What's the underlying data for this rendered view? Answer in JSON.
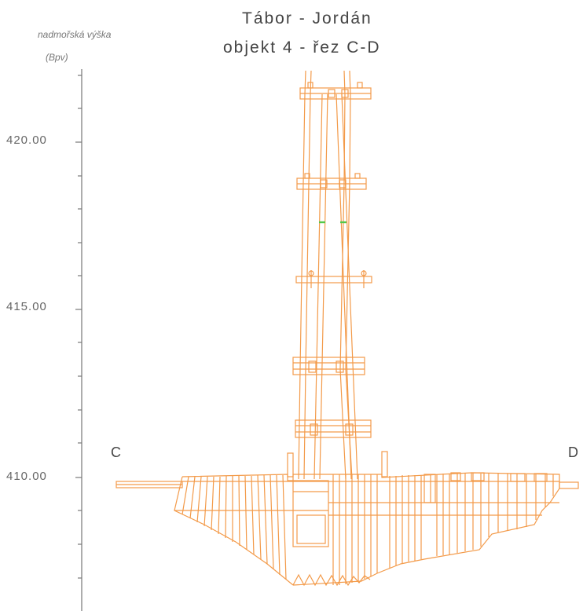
{
  "title": {
    "line1": "Tábor - Jordán",
    "line2": "objekt 4 - řez C-D"
  },
  "axis": {
    "caption1": "nadmořská výška",
    "caption2": "(Bpv)",
    "ticks": [
      "420.00",
      "415.00",
      "410.00"
    ]
  },
  "section": {
    "start_label": "C",
    "end_label": "D"
  },
  "colors": {
    "drawing": "#f39a49",
    "marker": "#53c84a",
    "axis": "#777777"
  }
}
